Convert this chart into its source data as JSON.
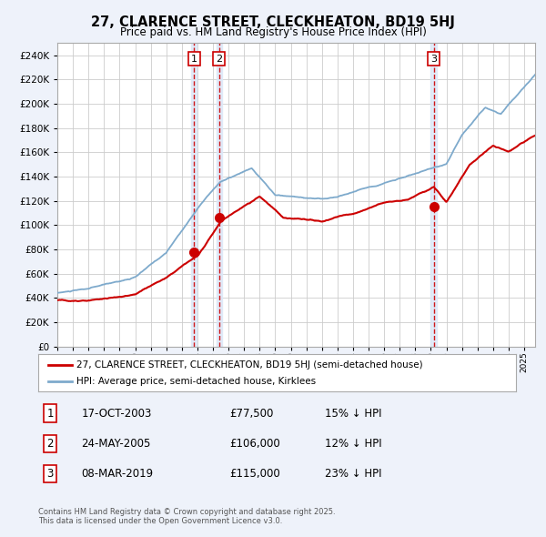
{
  "title": "27, CLARENCE STREET, CLECKHEATON, BD19 5HJ",
  "subtitle": "Price paid vs. HM Land Registry's House Price Index (HPI)",
  "legend_line1": "27, CLARENCE STREET, CLECKHEATON, BD19 5HJ (semi-detached house)",
  "legend_line2": "HPI: Average price, semi-detached house, Kirklees",
  "footer": "Contains HM Land Registry data © Crown copyright and database right 2025.\nThis data is licensed under the Open Government Licence v3.0.",
  "sale_color": "#cc0000",
  "hpi_color": "#7eaacc",
  "background_color": "#eef2fa",
  "plot_bg_color": "#ffffff",
  "grid_color": "#cccccc",
  "ylim": [
    0,
    250000
  ],
  "ytick_step": 20000,
  "sale_events": [
    {
      "label": "1",
      "date_str": "17-OCT-2003",
      "price": 77500,
      "x_year": 2003.79,
      "pct": "15% ↓ HPI"
    },
    {
      "label": "2",
      "date_str": "24-MAY-2005",
      "price": 106000,
      "x_year": 2005.39,
      "pct": "12% ↓ HPI"
    },
    {
      "label": "3",
      "date_str": "08-MAR-2019",
      "price": 115000,
      "x_year": 2019.18,
      "pct": "23% ↓ HPI"
    }
  ],
  "vspan_color": "#dce8f8",
  "vline_color": "#cc0000",
  "marker_color": "#cc0000",
  "marker_size": 7,
  "xlim_left": 1995.0,
  "xlim_right": 2025.7
}
